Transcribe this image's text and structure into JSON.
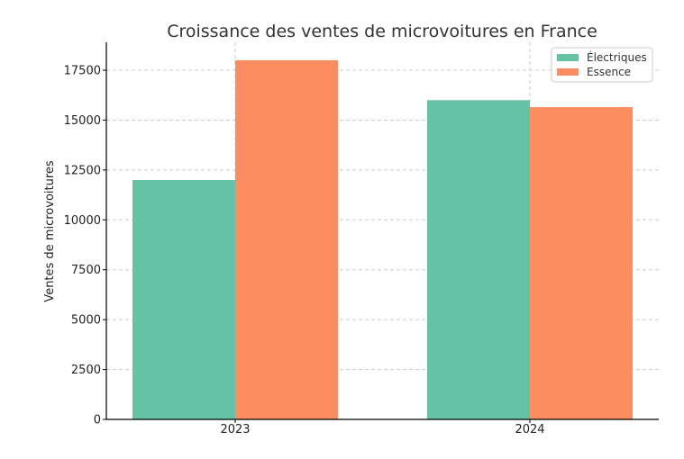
{
  "chart_data": {
    "type": "bar",
    "title": "Croissance des ventes de microvoitures en France",
    "xlabel": "",
    "ylabel": "Ventes de microvoitures",
    "categories": [
      "2023",
      "2024"
    ],
    "series": [
      {
        "name": "Électriques",
        "values": [
          12000,
          16000
        ],
        "color": "#66c2a5"
      },
      {
        "name": "Essence",
        "values": [
          18000,
          15650
        ],
        "color": "#fc8d62"
      }
    ],
    "ylim": [
      0,
      18900
    ],
    "yticks": [
      "0",
      "2500",
      "5000",
      "7500",
      "10000",
      "12500",
      "15000",
      "17500"
    ],
    "grid": true,
    "legend_position": "top-right"
  }
}
